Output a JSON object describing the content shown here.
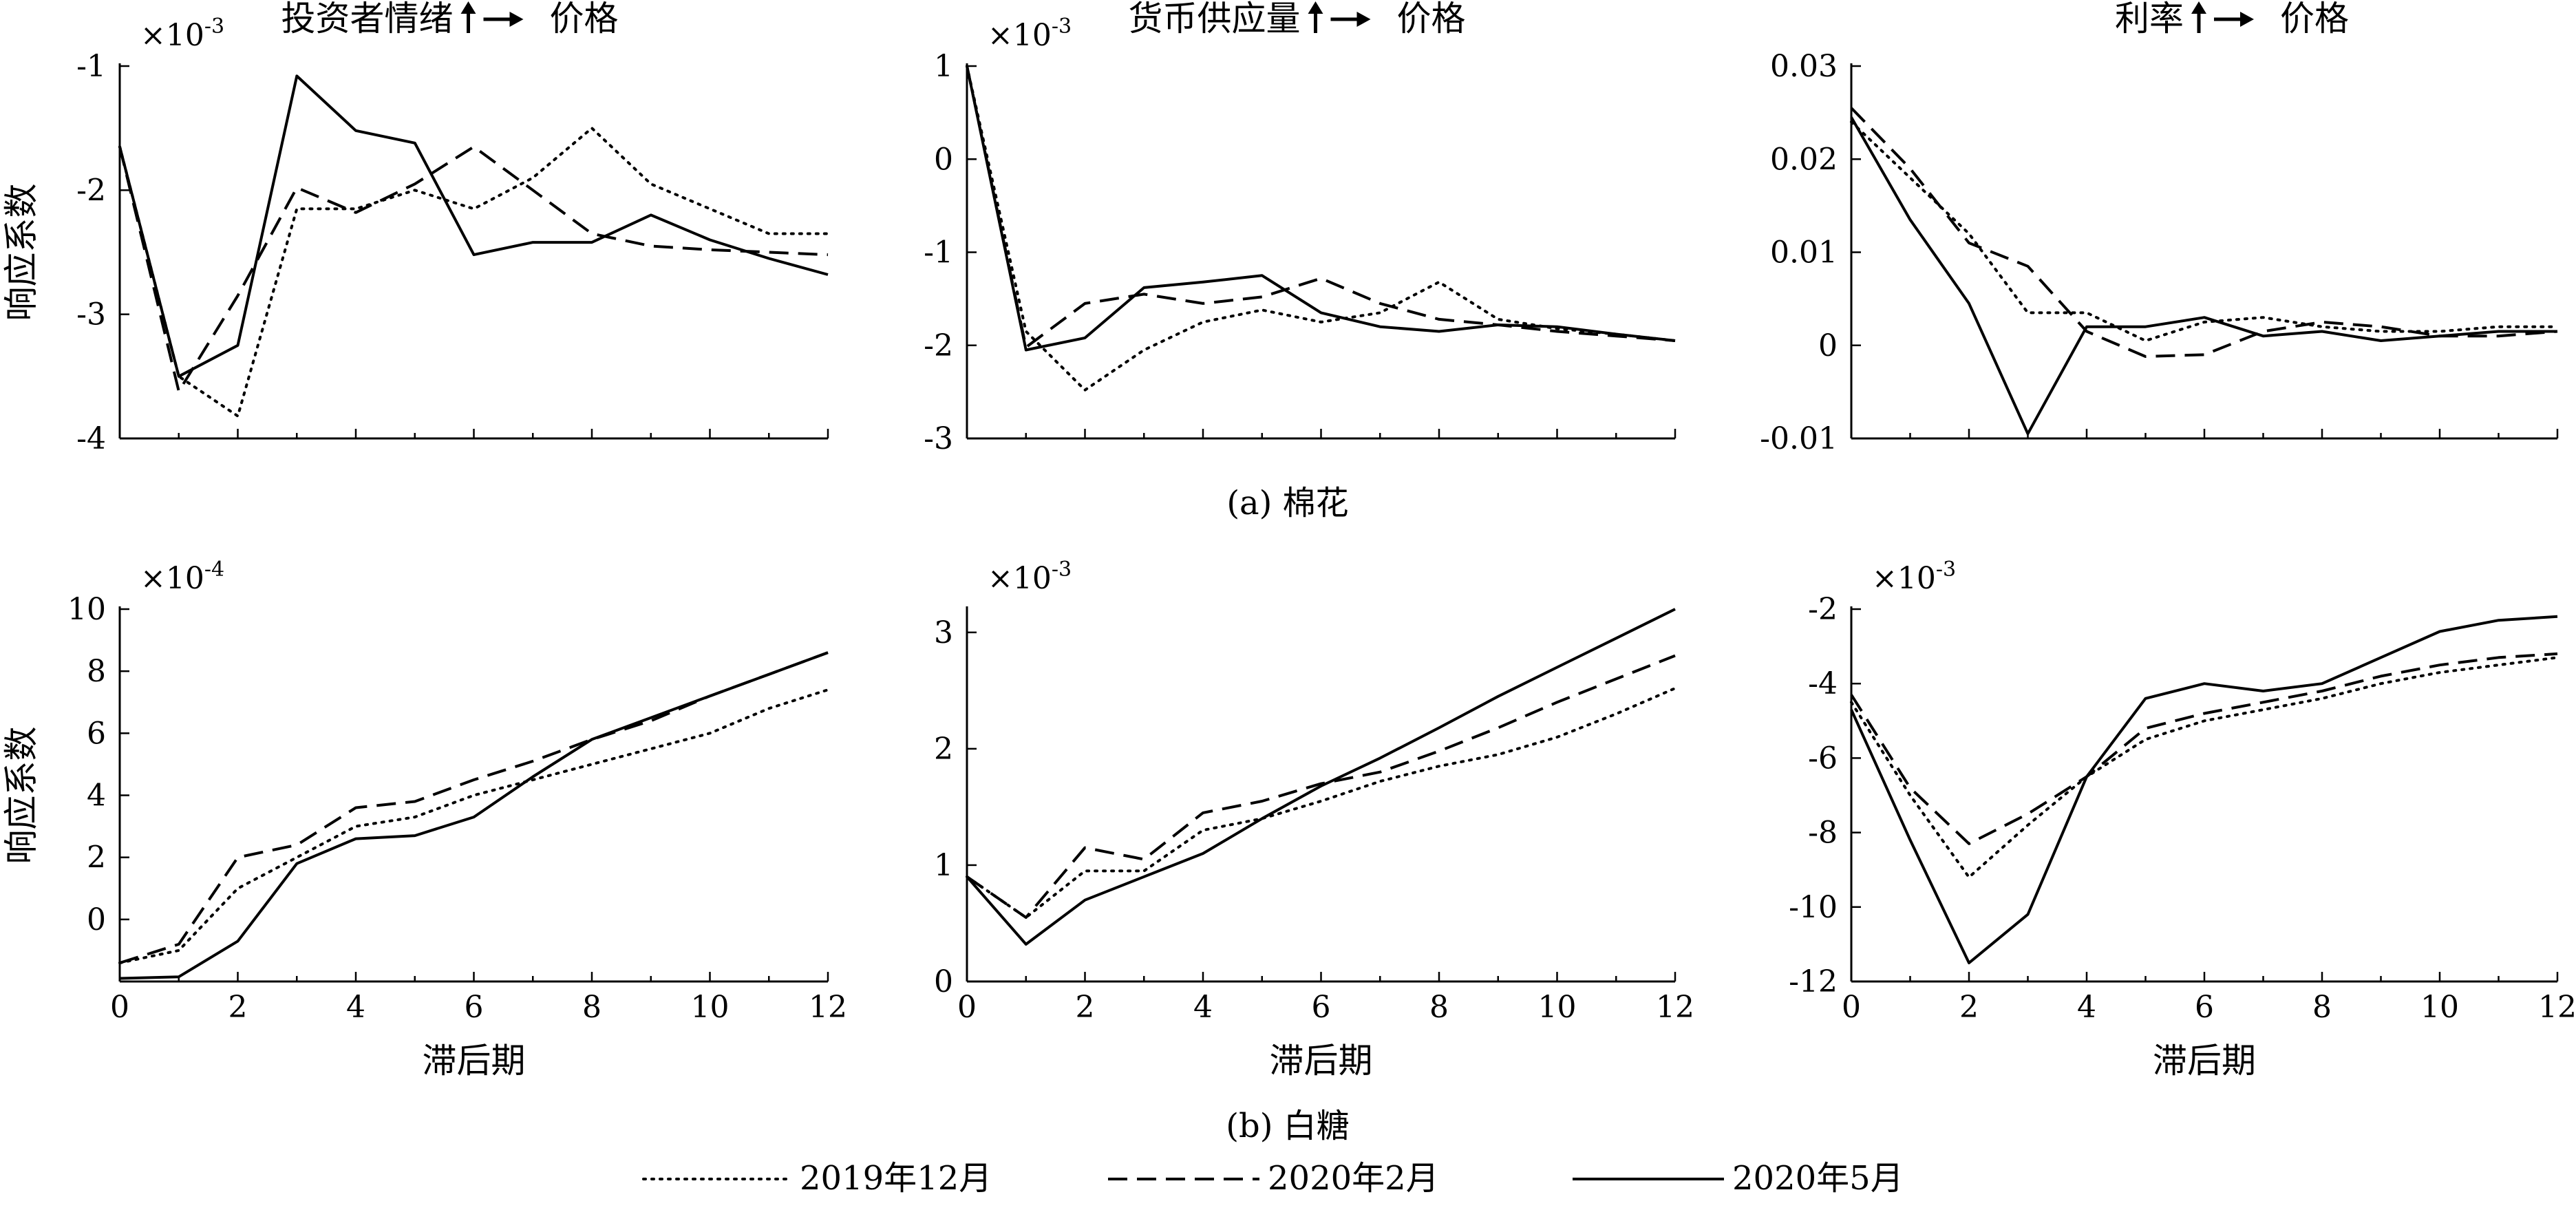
{
  "figure": {
    "caption_a": "(a) 棉花",
    "caption_b": "(b) 白糖",
    "row_ylabel": "响应系数",
    "xlabel": "滞后期"
  },
  "legend": [
    {
      "label": "2019年12月",
      "style": "dotted"
    },
    {
      "label": "2020年2月",
      "style": "dashed"
    },
    {
      "label": "2020年5月",
      "style": "solid"
    }
  ],
  "chart_data": [
    {
      "id": "a1",
      "row": 0,
      "col": 0,
      "type": "line",
      "title_left": "投资者情绪",
      "title_right": "价格",
      "exponent": "×10",
      "exponent_power": "-3",
      "ylabel": "响应系数",
      "xlabel": "",
      "xlim": [
        0,
        12
      ],
      "ylim": [
        -4,
        -1
      ],
      "xticks": [],
      "yticks": [
        -4,
        -3,
        -2,
        -1
      ],
      "series": [
        {
          "name": "2019年12月",
          "style": "dotted",
          "x": [
            0,
            1,
            2,
            3,
            4,
            5,
            6,
            7,
            8,
            9,
            10,
            11,
            12
          ],
          "y": [
            -1.65,
            -3.5,
            -3.82,
            -2.15,
            -2.15,
            -2.0,
            -2.15,
            -1.9,
            -1.5,
            -1.95,
            -2.15,
            -2.35,
            -2.35
          ]
        },
        {
          "name": "2020年2月",
          "style": "dashed",
          "x": [
            0,
            1,
            2,
            3,
            4,
            5,
            6,
            7,
            8,
            9,
            10,
            11,
            12
          ],
          "y": [
            -1.65,
            -3.62,
            -2.85,
            -1.98,
            -2.18,
            -1.95,
            -1.65,
            -2.0,
            -2.35,
            -2.45,
            -2.48,
            -2.5,
            -2.52
          ]
        },
        {
          "name": "2020年5月",
          "style": "solid",
          "x": [
            0,
            1,
            2,
            3,
            4,
            5,
            6,
            7,
            8,
            9,
            10,
            11,
            12
          ],
          "y": [
            -1.65,
            -3.5,
            -3.25,
            -1.08,
            -1.52,
            -1.62,
            -2.52,
            -2.42,
            -2.42,
            -2.2,
            -2.4,
            -2.55,
            -2.68
          ]
        }
      ]
    },
    {
      "id": "a2",
      "row": 0,
      "col": 1,
      "type": "line",
      "title_left": "货币供应量",
      "title_right": "价格",
      "exponent": "×10",
      "exponent_power": "-3",
      "ylabel": "",
      "xlabel": "",
      "xlim": [
        0,
        12
      ],
      "ylim": [
        -3,
        1
      ],
      "xticks": [],
      "yticks": [
        -3,
        -2,
        -1,
        0,
        1
      ],
      "series": [
        {
          "name": "2019年12月",
          "style": "dotted",
          "x": [
            0,
            1,
            2,
            3,
            4,
            5,
            6,
            7,
            8,
            9,
            10,
            11,
            12
          ],
          "y": [
            1.0,
            -1.85,
            -2.48,
            -2.05,
            -1.75,
            -1.62,
            -1.75,
            -1.65,
            -1.32,
            -1.72,
            -1.82,
            -1.88,
            -1.95
          ]
        },
        {
          "name": "2020年2月",
          "style": "dashed",
          "x": [
            0,
            1,
            2,
            3,
            4,
            5,
            6,
            7,
            8,
            9,
            10,
            11,
            12
          ],
          "y": [
            1.0,
            -2.02,
            -1.55,
            -1.45,
            -1.55,
            -1.48,
            -1.28,
            -1.55,
            -1.72,
            -1.78,
            -1.85,
            -1.9,
            -1.95
          ]
        },
        {
          "name": "2020年5月",
          "style": "solid",
          "x": [
            0,
            1,
            2,
            3,
            4,
            5,
            6,
            7,
            8,
            9,
            10,
            11,
            12
          ],
          "y": [
            1.0,
            -2.05,
            -1.92,
            -1.38,
            -1.32,
            -1.25,
            -1.65,
            -1.8,
            -1.85,
            -1.78,
            -1.8,
            -1.88,
            -1.95
          ]
        }
      ]
    },
    {
      "id": "a3",
      "row": 0,
      "col": 2,
      "type": "line",
      "title_left": "利率",
      "title_right": "价格",
      "exponent": "",
      "exponent_power": "",
      "ylabel": "",
      "xlabel": "",
      "xlim": [
        0,
        12
      ],
      "ylim": [
        -0.01,
        0.03
      ],
      "xticks": [],
      "yticks": [
        -0.01,
        0,
        0.01,
        0.02,
        0.03
      ],
      "ytick_labels": [
        "-0.01",
        "0",
        "0.01",
        "0.02",
        "0.03"
      ],
      "series": [
        {
          "name": "2019年12月",
          "style": "dotted",
          "x": [
            0,
            1,
            2,
            3,
            4,
            5,
            6,
            7,
            8,
            9,
            10,
            11,
            12
          ],
          "y": [
            0.024,
            0.018,
            0.012,
            0.0035,
            0.0035,
            0.0005,
            0.0025,
            0.003,
            0.002,
            0.0015,
            0.0015,
            0.002,
            0.002
          ]
        },
        {
          "name": "2020年2月",
          "style": "dashed",
          "x": [
            0,
            1,
            2,
            3,
            4,
            5,
            6,
            7,
            8,
            9,
            10,
            11,
            12
          ],
          "y": [
            0.0255,
            0.019,
            0.011,
            0.0085,
            0.0015,
            -0.0012,
            -0.001,
            0.0015,
            0.0025,
            0.002,
            0.001,
            0.001,
            0.0015
          ]
        },
        {
          "name": "2020年5月",
          "style": "solid",
          "x": [
            0,
            1,
            2,
            3,
            4,
            5,
            6,
            7,
            8,
            9,
            10,
            11,
            12
          ],
          "y": [
            0.0245,
            0.0135,
            0.0045,
            -0.0095,
            0.002,
            0.002,
            0.003,
            0.001,
            0.0015,
            0.0005,
            0.001,
            0.0015,
            0.0015
          ]
        }
      ]
    },
    {
      "id": "b1",
      "row": 1,
      "col": 0,
      "type": "line",
      "title_left": "",
      "title_right": "",
      "exponent": "×10",
      "exponent_power": "-4",
      "ylabel": "响应系数",
      "xlabel": "滞后期",
      "xlim": [
        0,
        12
      ],
      "ylim": [
        -2,
        10
      ],
      "xticks": [
        0,
        2,
        4,
        6,
        8,
        10,
        12
      ],
      "yticks": [
        0,
        2,
        4,
        6,
        8,
        10
      ],
      "series": [
        {
          "name": "2019年12月",
          "style": "dotted",
          "x": [
            0,
            1,
            2,
            3,
            4,
            5,
            6,
            7,
            8,
            9,
            10,
            11,
            12
          ],
          "y": [
            -1.4,
            -1.0,
            1.0,
            2.0,
            3.0,
            3.3,
            4.0,
            4.5,
            5.0,
            5.5,
            6.0,
            6.8,
            7.4
          ]
        },
        {
          "name": "2020年2月",
          "style": "dashed",
          "x": [
            0,
            1,
            2,
            3,
            4,
            5,
            6,
            7,
            8,
            9,
            10,
            11,
            12
          ],
          "y": [
            -1.4,
            -0.8,
            2.0,
            2.4,
            3.6,
            3.8,
            4.5,
            5.1,
            5.8,
            6.4,
            7.2,
            7.9,
            8.6
          ]
        },
        {
          "name": "2020年5月",
          "style": "solid",
          "x": [
            0,
            1,
            2,
            3,
            4,
            5,
            6,
            7,
            8,
            9,
            10,
            11,
            12
          ],
          "y": [
            -1.9,
            -1.85,
            -0.7,
            1.8,
            2.6,
            2.7,
            3.3,
            4.6,
            5.8,
            6.5,
            7.2,
            7.9,
            8.6
          ]
        }
      ]
    },
    {
      "id": "b2",
      "row": 1,
      "col": 1,
      "type": "line",
      "title_left": "",
      "title_right": "",
      "exponent": "×10",
      "exponent_power": "-3",
      "ylabel": "",
      "xlabel": "滞后期",
      "xlim": [
        0,
        12
      ],
      "ylim": [
        0,
        3.2
      ],
      "xticks": [
        0,
        2,
        4,
        6,
        8,
        10,
        12
      ],
      "yticks": [
        0,
        1,
        2,
        3
      ],
      "series": [
        {
          "name": "2019年12月",
          "style": "dotted",
          "x": [
            0,
            1,
            2,
            3,
            4,
            5,
            6,
            7,
            8,
            9,
            10,
            11,
            12
          ],
          "y": [
            0.9,
            0.55,
            0.95,
            0.95,
            1.3,
            1.4,
            1.55,
            1.72,
            1.85,
            1.95,
            2.1,
            2.3,
            2.52
          ]
        },
        {
          "name": "2020年2月",
          "style": "dashed",
          "x": [
            0,
            1,
            2,
            3,
            4,
            5,
            6,
            7,
            8,
            9,
            10,
            11,
            12
          ],
          "y": [
            0.9,
            0.55,
            1.15,
            1.05,
            1.45,
            1.55,
            1.7,
            1.8,
            1.98,
            2.18,
            2.4,
            2.6,
            2.8
          ]
        },
        {
          "name": "2020年5月",
          "style": "solid",
          "x": [
            0,
            1,
            2,
            3,
            4,
            5,
            6,
            7,
            8,
            9,
            10,
            11,
            12
          ],
          "y": [
            0.9,
            0.32,
            0.7,
            0.9,
            1.1,
            1.4,
            1.68,
            1.92,
            2.18,
            2.45,
            2.7,
            2.95,
            3.2
          ]
        }
      ]
    },
    {
      "id": "b3",
      "row": 1,
      "col": 2,
      "type": "line",
      "title_left": "",
      "title_right": "",
      "exponent": "×10",
      "exponent_power": "-3",
      "ylabel": "",
      "xlabel": "滞后期",
      "xlim": [
        0,
        12
      ],
      "ylim": [
        -12,
        -2
      ],
      "xticks": [
        0,
        2,
        4,
        6,
        8,
        10,
        12
      ],
      "yticks": [
        -12,
        -10,
        -8,
        -6,
        -4,
        -2
      ],
      "series": [
        {
          "name": "2019年12月",
          "style": "dotted",
          "x": [
            0,
            1,
            2,
            3,
            4,
            5,
            6,
            7,
            8,
            9,
            10,
            11,
            12
          ],
          "y": [
            -4.5,
            -7.0,
            -9.2,
            -7.8,
            -6.5,
            -5.5,
            -5.0,
            -4.7,
            -4.4,
            -4.0,
            -3.7,
            -3.5,
            -3.3
          ]
        },
        {
          "name": "2020年2月",
          "style": "dashed",
          "x": [
            0,
            1,
            2,
            3,
            4,
            5,
            6,
            7,
            8,
            9,
            10,
            11,
            12
          ],
          "y": [
            -4.3,
            -6.8,
            -8.3,
            -7.5,
            -6.5,
            -5.2,
            -4.8,
            -4.5,
            -4.2,
            -3.8,
            -3.5,
            -3.3,
            -3.2
          ]
        },
        {
          "name": "2020年5月",
          "style": "solid",
          "x": [
            0,
            1,
            2,
            3,
            4,
            5,
            6,
            7,
            8,
            9,
            10,
            11,
            12
          ],
          "y": [
            -4.7,
            -8.2,
            -11.5,
            -10.2,
            -6.5,
            -4.4,
            -4.0,
            -4.2,
            -4.0,
            -3.3,
            -2.6,
            -2.3,
            -2.2
          ]
        }
      ]
    }
  ]
}
